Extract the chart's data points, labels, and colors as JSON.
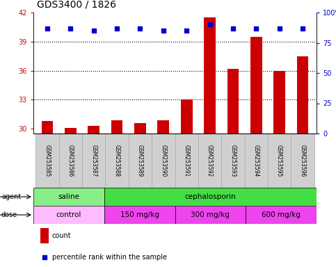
{
  "title": "GDS3400 / 1826",
  "samples": [
    "GSM253585",
    "GSM253586",
    "GSM253587",
    "GSM253588",
    "GSM253589",
    "GSM253590",
    "GSM253591",
    "GSM253592",
    "GSM253593",
    "GSM253594",
    "GSM253595",
    "GSM253596"
  ],
  "counts": [
    30.8,
    30.05,
    30.3,
    30.9,
    30.6,
    30.85,
    33.0,
    41.5,
    36.2,
    39.5,
    36.0,
    37.5
  ],
  "percentile_ranks": [
    87,
    87,
    85,
    87,
    87,
    85,
    85,
    90,
    87,
    87,
    87,
    87
  ],
  "ylim_left": [
    29.5,
    42
  ],
  "yticks_left": [
    30,
    33,
    36,
    39,
    42
  ],
  "ylim_right": [
    0,
    100
  ],
  "yticks_right": [
    0,
    25,
    50,
    75,
    100
  ],
  "count_color": "#cc0000",
  "percentile_color": "#0000cc",
  "bar_width": 0.5,
  "agent_groups": [
    {
      "label": "saline",
      "start": 0,
      "end": 3,
      "color": "#88ee88"
    },
    {
      "label": "cephalosporin",
      "start": 3,
      "end": 12,
      "color": "#44dd44"
    }
  ],
  "dose_groups": [
    {
      "label": "control",
      "start": 0,
      "end": 3,
      "color": "#ffbbff"
    },
    {
      "label": "150 mg/kg",
      "start": 3,
      "end": 6,
      "color": "#ee44ee"
    },
    {
      "label": "300 mg/kg",
      "start": 6,
      "end": 9,
      "color": "#ee44ee"
    },
    {
      "label": "600 mg/kg",
      "start": 9,
      "end": 12,
      "color": "#ee44ee"
    }
  ],
  "xlabel_color": "#cc0000",
  "ylabel_right_color": "#0000cc",
  "title_fontsize": 10,
  "tick_fontsize": 7,
  "label_fontsize": 7,
  "plot_bg_color": "#ffffff",
  "sample_box_color": "#d0d0d0",
  "sample_box_edge": "#aaaaaa"
}
